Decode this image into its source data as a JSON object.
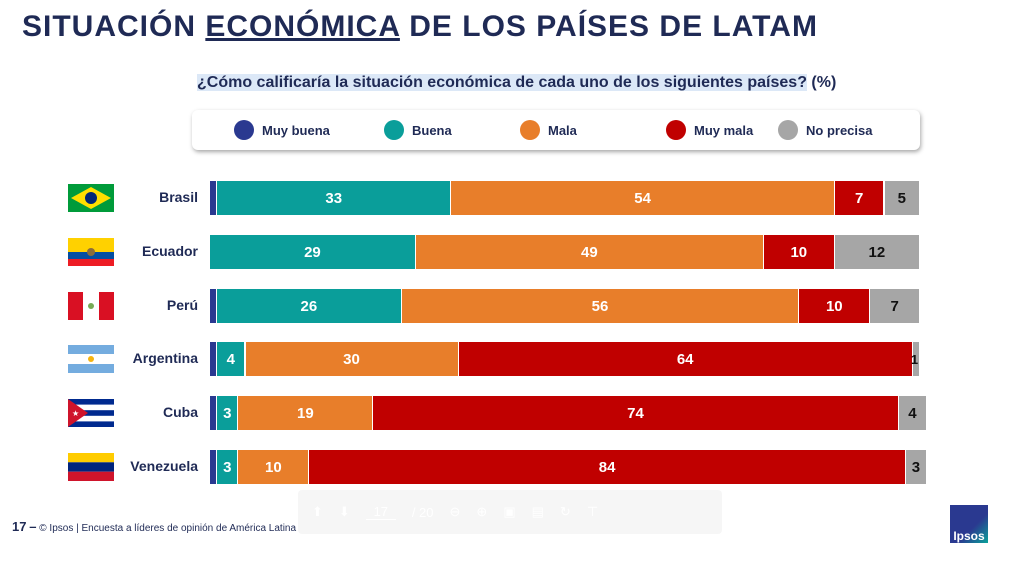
{
  "title": {
    "pre": "SITUACIÓN ",
    "underlined": "ECONÓMICA",
    "post": " DE LOS PAÍSES DE LATAM"
  },
  "question": {
    "text": "¿Cómo calificaría la situación económica de cada uno de los siguientes países?",
    "unit": "(%)"
  },
  "chart_data": {
    "type": "bar",
    "orientation": "horizontal",
    "stacked": true,
    "xlim": [
      0,
      100
    ],
    "legend_position": "top",
    "categories": [
      "Brasil",
      "Ecuador",
      "Perú",
      "Argentina",
      "Cuba",
      "Venezuela"
    ],
    "series": [
      {
        "name": "Muy buena",
        "color": "#2a3990",
        "values": [
          1,
          0,
          1,
          1,
          1,
          1
        ]
      },
      {
        "name": "Buena",
        "color": "#0a9e9a",
        "values": [
          33,
          29,
          26,
          4,
          3,
          3
        ]
      },
      {
        "name": "Mala",
        "color": "#e87e2a",
        "values": [
          54,
          49,
          56,
          30,
          19,
          10
        ]
      },
      {
        "name": "Muy mala",
        "color": "#c00000",
        "values": [
          7,
          10,
          10,
          64,
          74,
          84
        ]
      },
      {
        "name": "No precisa",
        "color": "#a6a6a6",
        "values": [
          5,
          12,
          7,
          1,
          4,
          3
        ]
      }
    ]
  },
  "footer": {
    "page": "17",
    "dash": "–",
    "text": "© Ipsos | Encuesta a líderes de opinión de América Latina"
  },
  "toolbar": {
    "page_input": "17",
    "page_total": "/ 20"
  },
  "logo": "Ipsos"
}
